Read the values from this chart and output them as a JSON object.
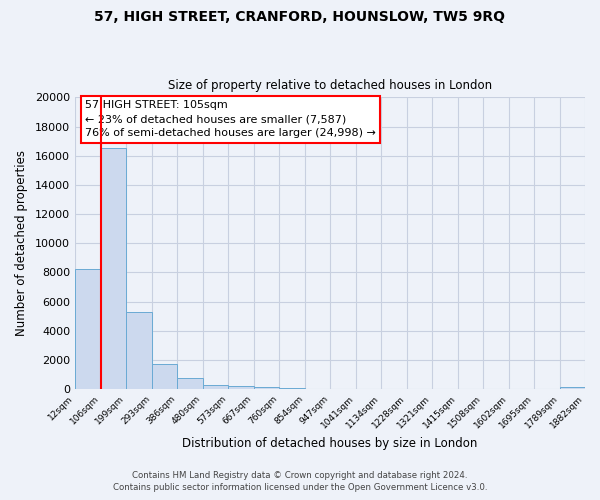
{
  "title": "57, HIGH STREET, CRANFORD, HOUNSLOW, TW5 9RQ",
  "subtitle": "Size of property relative to detached houses in London",
  "xlabel": "Distribution of detached houses by size in London",
  "ylabel": "Number of detached properties",
  "bar_color": "#ccd9ee",
  "bar_edge_color": "#6aaad4",
  "red_line_x": 106,
  "bin_edges": [
    12,
    106,
    199,
    293,
    386,
    480,
    573,
    667,
    760,
    854,
    947,
    1041,
    1134,
    1228,
    1321,
    1415,
    1508,
    1602,
    1695,
    1789,
    1882
  ],
  "bar_heights": [
    8200,
    16500,
    5300,
    1750,
    750,
    300,
    210,
    140,
    100,
    0,
    0,
    0,
    0,
    0,
    0,
    0,
    0,
    0,
    0,
    150
  ],
  "ylim": [
    0,
    20000
  ],
  "yticks": [
    0,
    2000,
    4000,
    6000,
    8000,
    10000,
    12000,
    14000,
    16000,
    18000,
    20000
  ],
  "xtick_labels": [
    "12sqm",
    "106sqm",
    "199sqm",
    "293sqm",
    "386sqm",
    "480sqm",
    "573sqm",
    "667sqm",
    "760sqm",
    "854sqm",
    "947sqm",
    "1041sqm",
    "1134sqm",
    "1228sqm",
    "1321sqm",
    "1415sqm",
    "1508sqm",
    "1602sqm",
    "1695sqm",
    "1789sqm",
    "1882sqm"
  ],
  "annotation_line1": "57 HIGH STREET: 105sqm",
  "annotation_line2": "← 23% of detached houses are smaller (7,587)",
  "annotation_line3": "76% of semi-detached houses are larger (24,998) →",
  "footer1": "Contains HM Land Registry data © Crown copyright and database right 2024.",
  "footer2": "Contains public sector information licensed under the Open Government Licence v3.0.",
  "background_color": "#eef2f9",
  "grid_color": "#d0d8e8"
}
